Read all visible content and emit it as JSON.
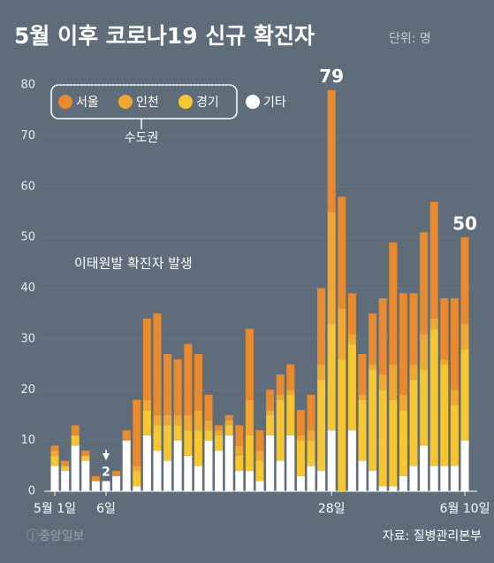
{
  "chart_data": {
    "type": "stacked_bar",
    "title": "5월 이후 코로나19 신규 확진자",
    "unit": "단위: 명",
    "legend_group": "수도권",
    "annotation": "이태원발 확진자 발생",
    "source": "자료: 질병관리본부",
    "watermark": "ⓙ중앙일보",
    "categories": [
      "5월 1일",
      null,
      null,
      null,
      null,
      "6일",
      null,
      null,
      null,
      null,
      null,
      null,
      null,
      null,
      null,
      null,
      null,
      null,
      null,
      null,
      null,
      null,
      null,
      null,
      null,
      null,
      null,
      "28일",
      null,
      null,
      null,
      null,
      null,
      null,
      null,
      null,
      null,
      null,
      null,
      null,
      "6월 10일"
    ],
    "series": [
      {
        "name": "기타",
        "color": "#ffffff",
        "values": [
          5,
          4,
          9,
          6,
          2,
          2,
          3,
          10,
          1,
          11,
          8,
          6,
          10,
          7,
          5,
          10,
          8,
          11,
          4,
          4,
          2,
          11,
          6,
          11,
          3,
          5,
          4,
          12,
          0,
          12,
          6,
          4,
          1,
          1,
          3,
          5,
          9,
          5,
          5,
          5,
          10
        ]
      },
      {
        "name": "경기",
        "color": "#f7c631",
        "values": [
          2,
          1,
          2,
          1,
          0,
          0,
          0,
          0,
          3,
          5,
          5,
          7,
          3,
          5,
          7,
          2,
          3,
          2,
          3,
          7,
          4,
          4,
          12,
          8,
          7,
          5,
          18,
          21,
          26,
          17,
          12,
          20,
          19,
          17,
          13,
          17,
          15,
          27,
          20,
          12,
          18
        ]
      },
      {
        "name": "인천",
        "color": "#f1a832",
        "values": [
          1,
          0,
          0,
          0,
          0,
          0,
          0,
          0,
          1,
          2,
          2,
          2,
          2,
          3,
          4,
          2,
          1,
          1,
          2,
          7,
          2,
          1,
          1,
          1,
          1,
          2,
          3,
          22,
          10,
          2,
          1,
          1,
          3,
          7,
          3,
          3,
          7,
          2,
          1,
          3,
          5
        ]
      },
      {
        "name": "서울",
        "color": "#e98a2f",
        "values": [
          1,
          1,
          2,
          1,
          1,
          0,
          1,
          2,
          13,
          16,
          20,
          12,
          11,
          14,
          11,
          5,
          1,
          1,
          4,
          14,
          4,
          4,
          4,
          5,
          5,
          7,
          15,
          24,
          22,
          8,
          8,
          10,
          15,
          24,
          20,
          14,
          20,
          23,
          12,
          18,
          17
        ]
      }
    ],
    "legend_order": [
      3,
      2,
      1,
      0
    ],
    "data_labels": [
      {
        "index": 27,
        "value": 79
      },
      {
        "index": 40,
        "value": 50
      },
      {
        "index": 5,
        "value": 2
      }
    ],
    "ylim": [
      0,
      80
    ],
    "yticks": [
      0,
      10,
      20,
      30,
      40,
      50,
      60,
      70,
      80
    ],
    "grid": true
  }
}
